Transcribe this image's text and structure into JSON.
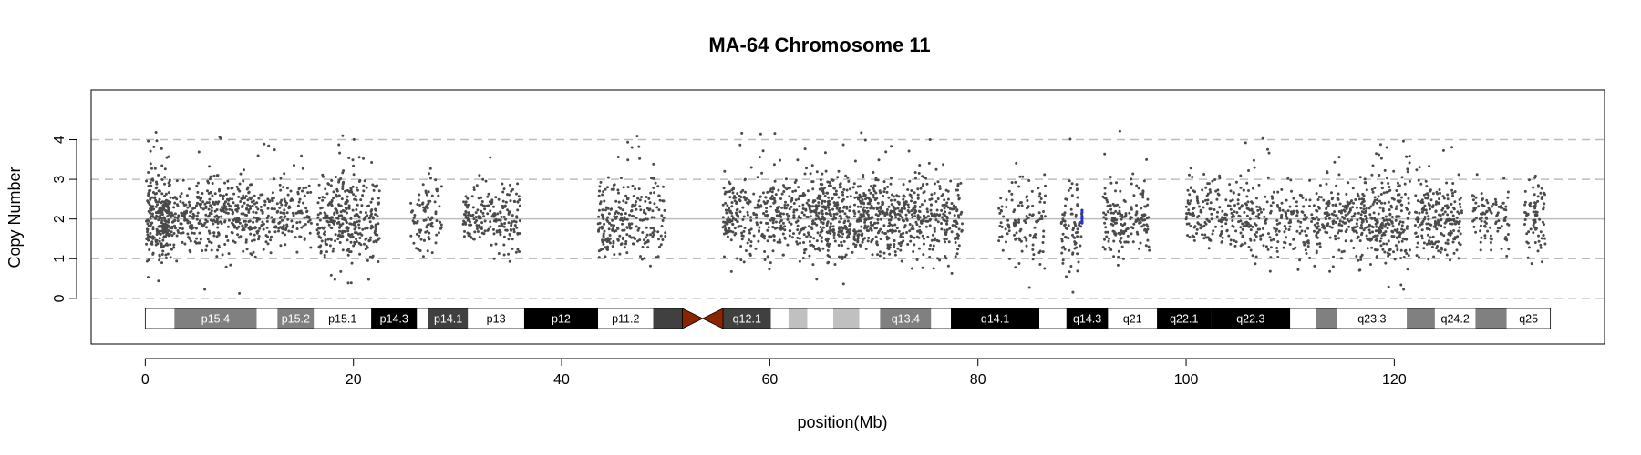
{
  "chart_data": {
    "type": "scatter",
    "title": "MA-64  Chromosome 11",
    "xlabel": "position(Mb)",
    "ylabel": "Copy Number",
    "xlim": [
      -5.2,
      140.2
    ],
    "ylim": [
      -1.15,
      5.25
    ],
    "x_ticks": [
      0,
      20,
      40,
      60,
      80,
      100,
      120
    ],
    "y_ticks": [
      0,
      1,
      2,
      3,
      4
    ],
    "reference_lines": {
      "solid": [
        2
      ],
      "dashed": [
        0,
        1,
        3,
        4
      ]
    },
    "grid": false,
    "point_color": "#4a4a4a",
    "highlight_color": "#2233cc",
    "highlight_x": 90.0,
    "points_note_free": true,
    "clusters": [
      {
        "x0": 0.1,
        "x1": 2.4,
        "n": 260,
        "mean": 2.0,
        "sd": 0.55
      },
      {
        "x0": 2.4,
        "x1": 11.5,
        "n": 420,
        "mean": 2.05,
        "sd": 0.45
      },
      {
        "x0": 11.5,
        "x1": 16.0,
        "n": 150,
        "mean": 2.05,
        "sd": 0.45
      },
      {
        "x0": 16.5,
        "x1": 22.5,
        "n": 330,
        "mean": 2.0,
        "sd": 0.55
      },
      {
        "x0": 25.5,
        "x1": 28.5,
        "n": 90,
        "mean": 2.1,
        "sd": 0.45
      },
      {
        "x0": 30.5,
        "x1": 36.0,
        "n": 200,
        "mean": 2.05,
        "sd": 0.45
      },
      {
        "x0": 43.5,
        "x1": 50.0,
        "n": 260,
        "mean": 1.95,
        "sd": 0.55
      },
      {
        "x0": 55.5,
        "x1": 64.0,
        "n": 380,
        "mean": 2.05,
        "sd": 0.5
      },
      {
        "x0": 64.0,
        "x1": 72.0,
        "n": 520,
        "mean": 2.0,
        "sd": 0.55
      },
      {
        "x0": 72.0,
        "x1": 78.5,
        "n": 300,
        "mean": 2.05,
        "sd": 0.5
      },
      {
        "x0": 82.0,
        "x1": 86.5,
        "n": 120,
        "mean": 1.95,
        "sd": 0.5
      },
      {
        "x0": 88.0,
        "x1": 90.0,
        "n": 80,
        "mean": 1.9,
        "sd": 0.55
      },
      {
        "x0": 92.0,
        "x1": 96.5,
        "n": 170,
        "mean": 2.05,
        "sd": 0.45
      },
      {
        "x0": 100.0,
        "x1": 106.0,
        "n": 200,
        "mean": 2.1,
        "sd": 0.45
      },
      {
        "x0": 106.0,
        "x1": 112.5,
        "n": 190,
        "mean": 2.0,
        "sd": 0.5
      },
      {
        "x0": 112.5,
        "x1": 116.0,
        "n": 140,
        "mean": 2.05,
        "sd": 0.5
      },
      {
        "x0": 116.0,
        "x1": 121.5,
        "n": 300,
        "mean": 1.95,
        "sd": 0.55
      },
      {
        "x0": 122.0,
        "x1": 126.5,
        "n": 220,
        "mean": 1.95,
        "sd": 0.5
      },
      {
        "x0": 127.5,
        "x1": 131.0,
        "n": 100,
        "mean": 2.0,
        "sd": 0.45
      },
      {
        "x0": 132.5,
        "x1": 134.5,
        "n": 80,
        "mean": 2.0,
        "sd": 0.55
      }
    ],
    "ideogram": {
      "centromere_color": "#8b2500",
      "bands": [
        {
          "start": 0.0,
          "end": 2.8,
          "label": "",
          "fill": "#ffffff"
        },
        {
          "start": 2.8,
          "end": 10.7,
          "label": "p15.4",
          "fill": "#808080"
        },
        {
          "start": 10.7,
          "end": 12.7,
          "label": "",
          "fill": "#ffffff"
        },
        {
          "start": 12.7,
          "end": 16.2,
          "label": "p15.2",
          "fill": "#808080"
        },
        {
          "start": 16.2,
          "end": 21.7,
          "label": "p15.1",
          "fill": "#ffffff"
        },
        {
          "start": 21.7,
          "end": 26.1,
          "label": "p14.3",
          "fill": "#000000"
        },
        {
          "start": 26.1,
          "end": 27.2,
          "label": "",
          "fill": "#ffffff"
        },
        {
          "start": 27.2,
          "end": 31.0,
          "label": "p14.1",
          "fill": "#404040"
        },
        {
          "start": 31.0,
          "end": 36.4,
          "label": "p13",
          "fill": "#ffffff"
        },
        {
          "start": 36.4,
          "end": 43.5,
          "label": "p12",
          "fill": "#000000"
        },
        {
          "start": 43.5,
          "end": 48.8,
          "label": "p11.2",
          "fill": "#ffffff"
        },
        {
          "start": 48.8,
          "end": 51.6,
          "label": "",
          "fill": "#404040"
        },
        {
          "start": 55.5,
          "end": 60.1,
          "label": "q12.1",
          "fill": "#404040"
        },
        {
          "start": 60.1,
          "end": 61.8,
          "label": "",
          "fill": "#ffffff"
        },
        {
          "start": 61.8,
          "end": 63.6,
          "label": "",
          "fill": "#c0c0c0"
        },
        {
          "start": 63.6,
          "end": 66.1,
          "label": "",
          "fill": "#ffffff"
        },
        {
          "start": 66.1,
          "end": 68.6,
          "label": "",
          "fill": "#c0c0c0"
        },
        {
          "start": 68.6,
          "end": 70.6,
          "label": "",
          "fill": "#ffffff"
        },
        {
          "start": 70.6,
          "end": 75.5,
          "label": "q13.4",
          "fill": "#808080"
        },
        {
          "start": 75.5,
          "end": 77.4,
          "label": "",
          "fill": "#ffffff"
        },
        {
          "start": 77.4,
          "end": 85.9,
          "label": "q14.1",
          "fill": "#000000"
        },
        {
          "start": 85.9,
          "end": 88.5,
          "label": "",
          "fill": "#ffffff"
        },
        {
          "start": 88.5,
          "end": 92.5,
          "label": "q14.3",
          "fill": "#000000"
        },
        {
          "start": 92.5,
          "end": 97.2,
          "label": "q21",
          "fill": "#ffffff"
        },
        {
          "start": 97.2,
          "end": 102.4,
          "label": "q22.1",
          "fill": "#000000"
        },
        {
          "start": 102.4,
          "end": 110.0,
          "label": "q22.3",
          "fill": "#000000"
        },
        {
          "start": 110.0,
          "end": 112.5,
          "label": "",
          "fill": "#ffffff"
        },
        {
          "start": 112.5,
          "end": 114.5,
          "label": "",
          "fill": "#808080"
        },
        {
          "start": 114.5,
          "end": 121.2,
          "label": "q23.3",
          "fill": "#ffffff"
        },
        {
          "start": 121.2,
          "end": 123.9,
          "label": "",
          "fill": "#808080"
        },
        {
          "start": 123.9,
          "end": 127.8,
          "label": "q24.2",
          "fill": "#ffffff"
        },
        {
          "start": 127.8,
          "end": 130.8,
          "label": "",
          "fill": "#808080"
        },
        {
          "start": 130.8,
          "end": 135.0,
          "label": "q25",
          "fill": "#ffffff"
        }
      ]
    }
  }
}
